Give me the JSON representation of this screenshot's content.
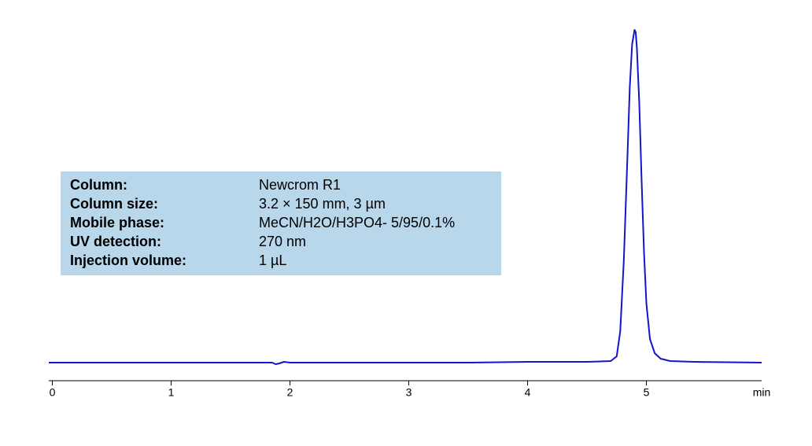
{
  "chart_data": {
    "type": "line",
    "x_label": "min",
    "xlim": [
      -0.03,
      5.97
    ],
    "ylim": [
      -30,
      450
    ],
    "xticks": [
      0,
      1,
      2,
      3,
      4,
      5
    ],
    "info_box": {
      "rows": [
        [
          "Column:",
          "Newcrom R1"
        ],
        [
          "Column size:",
          "3.2 × 150 mm, 3 µm"
        ],
        [
          "Mobile phase:",
          "MeCN/H2O/H3PO4- 5/95/0.1%"
        ],
        [
          "UV detection:",
          "270 nm"
        ],
        [
          "Injection volume:",
          "1 µL"
        ]
      ]
    },
    "series": [
      {
        "color": "#1414c8",
        "x": [
          -0.03,
          0.5,
          1.0,
          1.5,
          1.8,
          1.85,
          1.88,
          1.91,
          1.95,
          2.0,
          2.5,
          3.0,
          3.5,
          4.0,
          4.5,
          4.7,
          4.75,
          4.78,
          4.81,
          4.84,
          4.86,
          4.88,
          4.9,
          4.91,
          4.92,
          4.94,
          4.96,
          4.98,
          5.0,
          5.03,
          5.07,
          5.12,
          5.2,
          5.4,
          5.97
        ],
        "y": [
          0,
          0,
          0,
          0,
          0,
          0,
          -2,
          -1,
          1,
          0,
          0,
          0,
          0,
          1,
          1,
          2,
          8,
          40,
          130,
          260,
          350,
          405,
          423,
          420,
          400,
          330,
          230,
          140,
          75,
          30,
          12,
          5,
          2,
          1,
          0
        ]
      }
    ]
  }
}
